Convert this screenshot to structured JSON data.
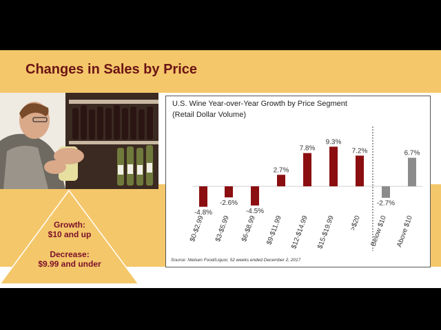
{
  "slide": {
    "title": "Changes in Sales by Price",
    "triangle": {
      "growth_heading": "Growth:",
      "growth_text": "$10 and up",
      "decrease_heading": "Decrease:",
      "decrease_text": "$9.99 and under"
    },
    "colors": {
      "band": "#f4c76a",
      "title": "#6b1414",
      "bar_segment": "#8b0e10",
      "bar_summary": "#8c8c8c",
      "triangle_text": "#7a0f2a"
    }
  },
  "chart_data": {
    "type": "bar",
    "title": "U.S. Wine Year-over-Year Growth by Price Segment",
    "subtitle": "(Retail Dollar Volume)",
    "source": "Source:  Nielsen Food/Liquor, 52 weeks ended December 2, 2017",
    "categories": [
      "$0-$2.99",
      "$3-$5.99",
      "$6-$8.99",
      "$9-$11.99",
      "$12-$14.99",
      "$15-$19.99",
      ">$20",
      "Below $10",
      "Above $10"
    ],
    "values": [
      -4.8,
      -2.6,
      -4.5,
      2.7,
      7.8,
      9.3,
      7.2,
      -2.7,
      6.7
    ],
    "labels": [
      "-4.8%",
      "-2.6%",
      "-4.5%",
      "2.7%",
      "7.8%",
      "9.3%",
      "7.2%",
      "-2.7%",
      "6.7%"
    ],
    "groups": [
      "segment",
      "segment",
      "segment",
      "segment",
      "segment",
      "segment",
      "segment",
      "summary",
      "summary"
    ],
    "ylim": [
      -6,
      10
    ],
    "grid": false,
    "divider_after": ">$20"
  }
}
